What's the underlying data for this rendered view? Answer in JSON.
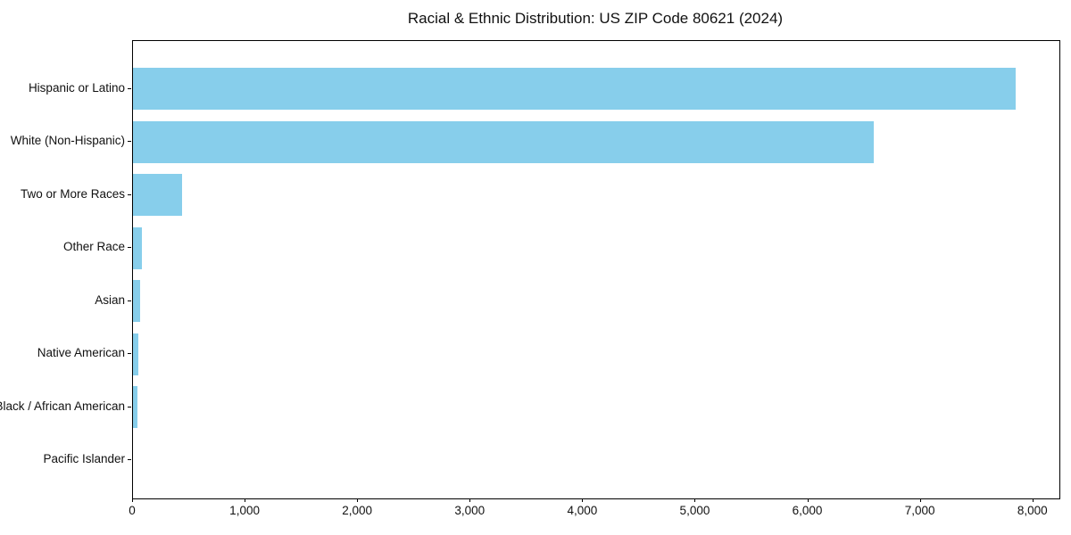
{
  "chart_data": {
    "type": "bar",
    "orientation": "horizontal",
    "title": "Racial & Ethnic Distribution: US ZIP Code 80621 (2024)",
    "categories": [
      "Hispanic or Latino",
      "White (Non-Hispanic)",
      "Two or More Races",
      "Other Race",
      "Asian",
      "Native American",
      "Black / African American",
      "Pacific Islander"
    ],
    "values": [
      7840,
      6585,
      435,
      80,
      67,
      51,
      40,
      0
    ],
    "bar_color": "#87CEEB",
    "xlim": [
      0,
      8232
    ],
    "x_ticks": [
      0,
      1000,
      2000,
      3000,
      4000,
      5000,
      6000,
      7000,
      8000
    ],
    "x_tick_labels": [
      "0",
      "1,000",
      "2,000",
      "3,000",
      "4,000",
      "5,000",
      "6,000",
      "7,000",
      "8,000"
    ],
    "xlabel": "",
    "ylabel": "",
    "grid": false,
    "legend": null,
    "background_color": "#ffffff",
    "axis_color": "#000000",
    "text_color": "#111111"
  }
}
